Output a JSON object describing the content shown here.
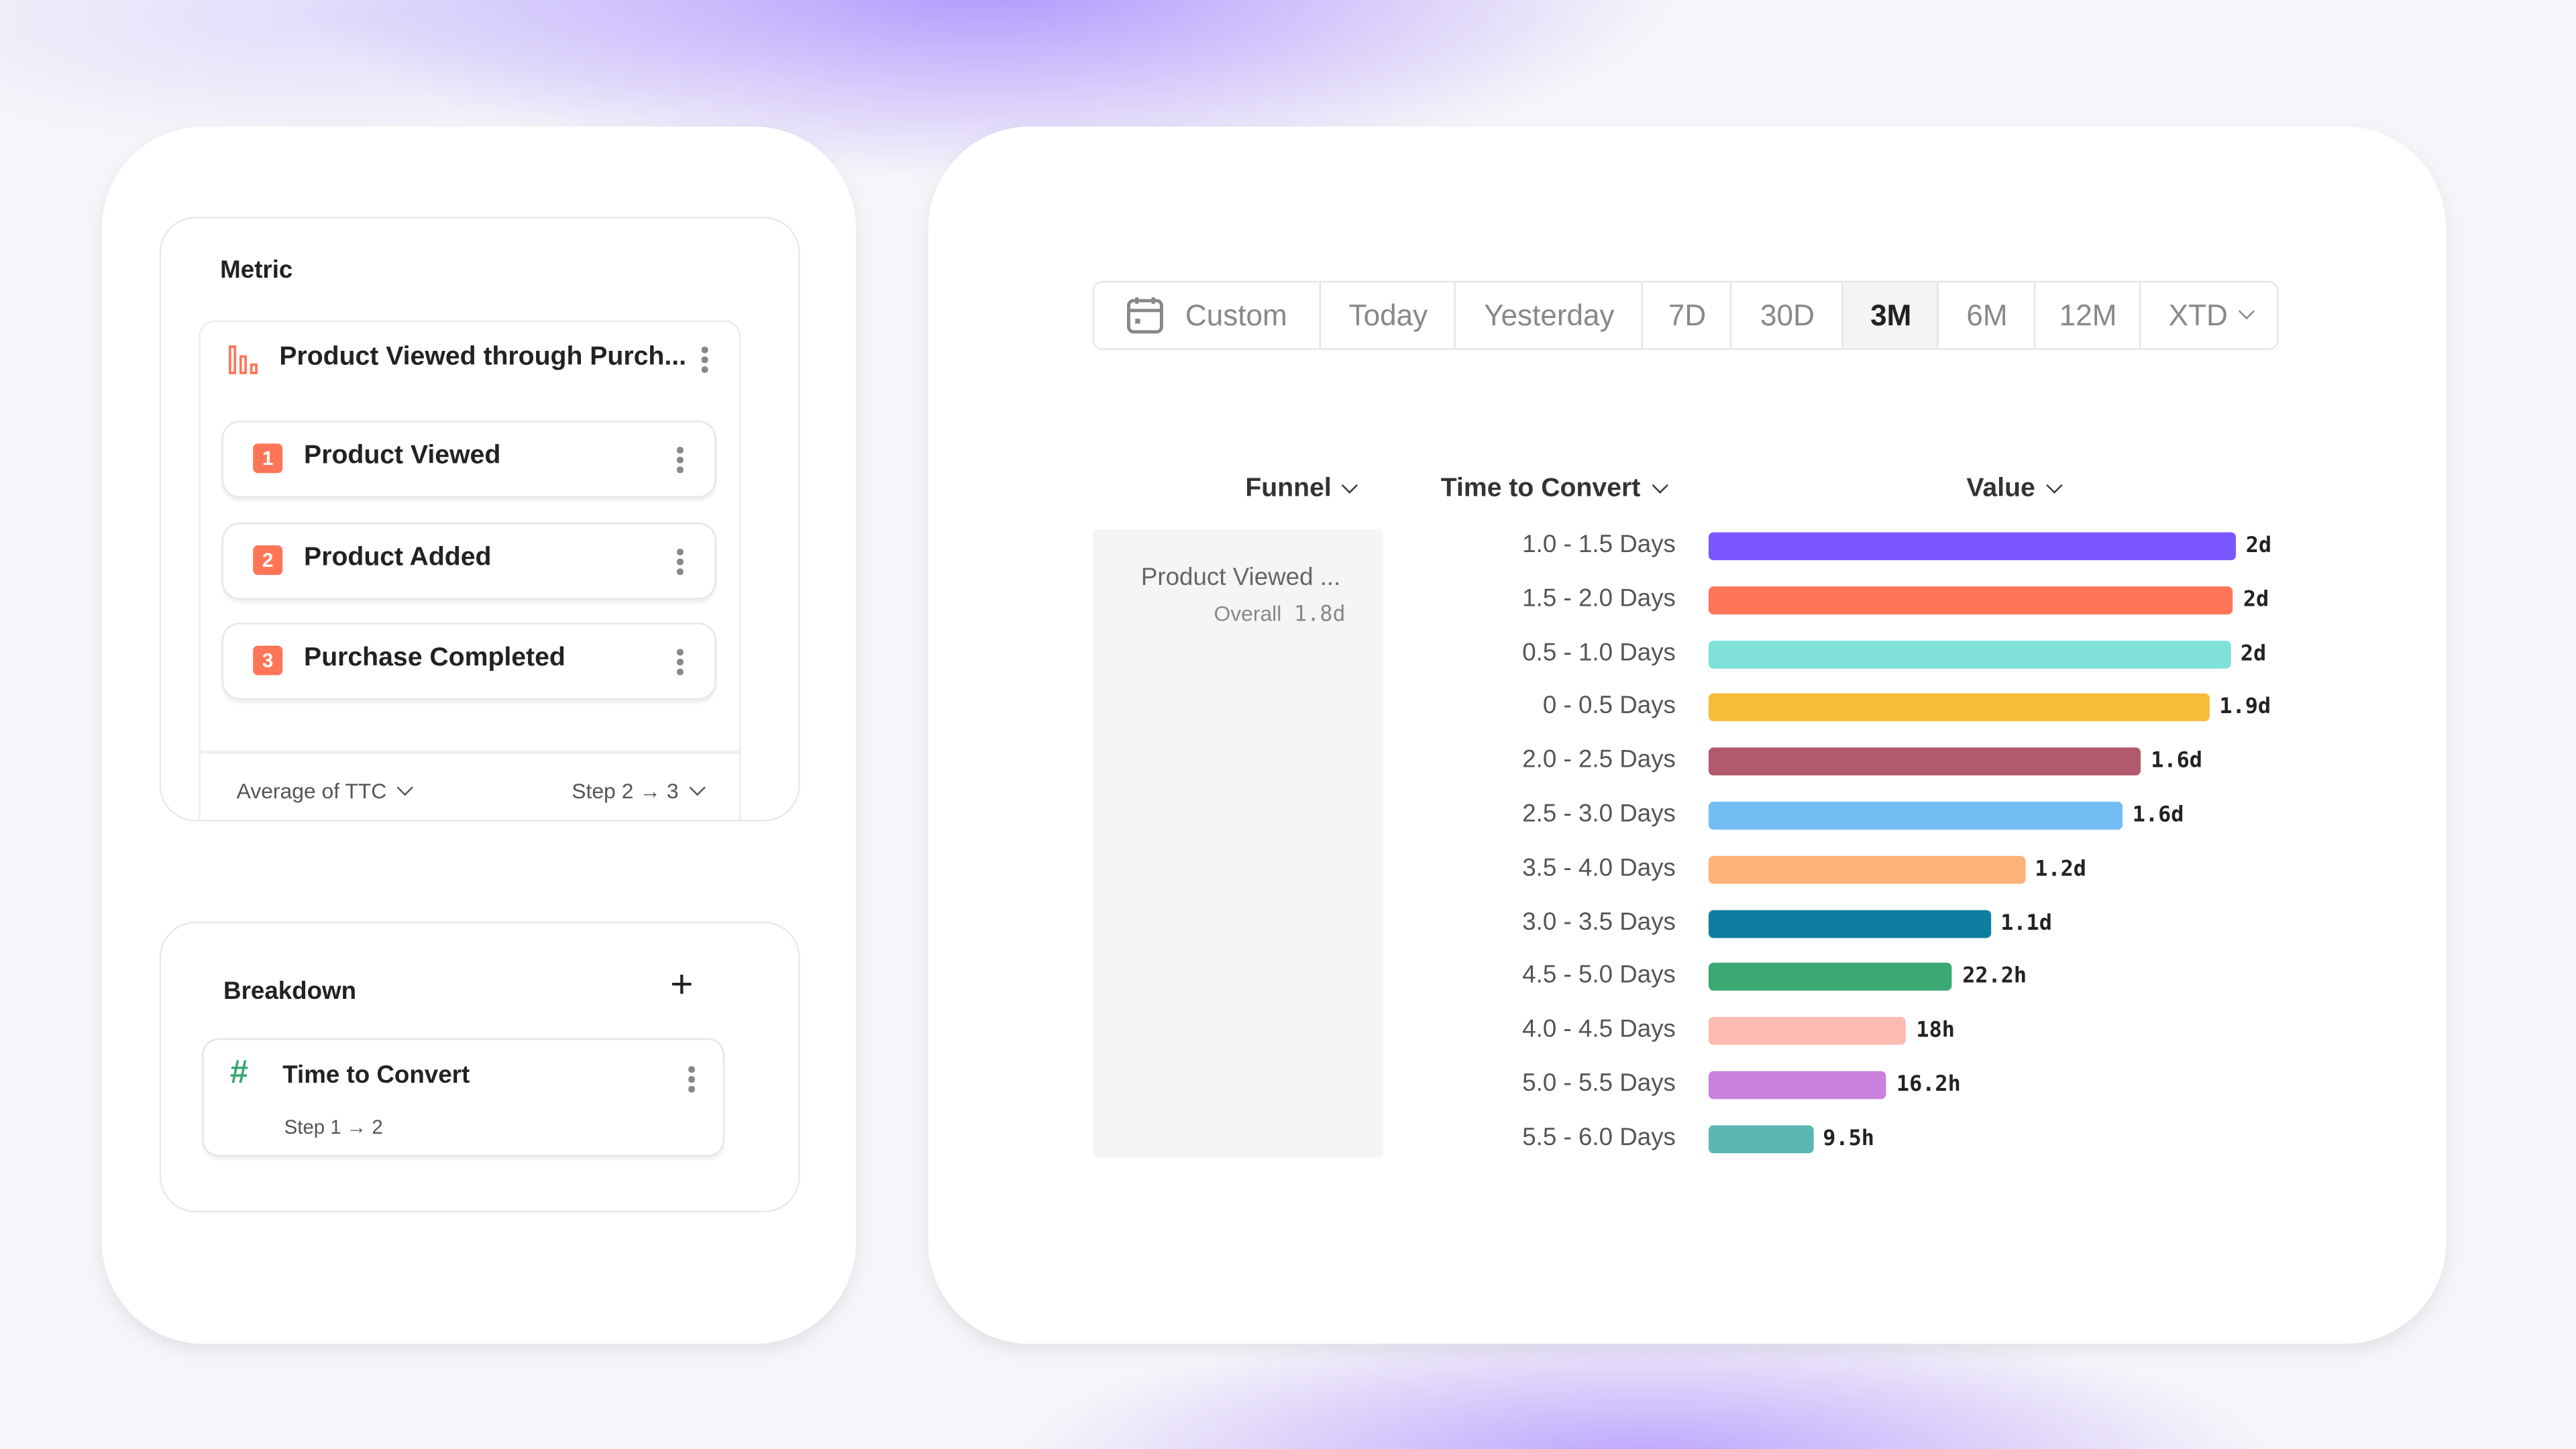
{
  "metric": {
    "title": "Metric",
    "funnel_name": "Product Viewed through Purch...",
    "funnel_icon": "funnel-bars-icon",
    "steps": [
      {
        "number": "1",
        "label": "Product Viewed"
      },
      {
        "number": "2",
        "label": "Product Added"
      },
      {
        "number": "3",
        "label": "Purchase Completed"
      }
    ],
    "aggregation": "Average of TTC",
    "step_range": "Step 2 → 3"
  },
  "breakdown": {
    "title": "Breakdown",
    "add_icon": "plus-icon",
    "item": {
      "icon": "hash-icon",
      "label": "Time to Convert",
      "sub": "Step 1 → 2"
    }
  },
  "date_range": {
    "icon": "calendar-icon",
    "options": [
      "Custom",
      "Today",
      "Yesterday",
      "7D",
      "30D",
      "3M",
      "6M",
      "12M",
      "XTD"
    ],
    "selected": "3M"
  },
  "table": {
    "headers": {
      "funnel": "Funnel",
      "time": "Time to Convert",
      "value": "Value"
    },
    "funnel_cell": {
      "name": "Product Viewed ...",
      "overall_label": "Overall",
      "overall_value": "1.8d"
    }
  },
  "chart_data": {
    "type": "bar",
    "orientation": "horizontal",
    "unit": "days",
    "xlim": [
      0,
      2.0
    ],
    "categories": [
      "1.0 - 1.5 Days",
      "1.5 - 2.0 Days",
      "0.5 - 1.0 Days",
      "0 - 0.5 Days",
      "2.0 - 2.5 Days",
      "2.5 - 3.0 Days",
      "3.5 - 4.0 Days",
      "3.0 - 3.5 Days",
      "4.5 - 5.0 Days",
      "4.0 - 4.5 Days",
      "5.0 - 5.5 Days",
      "5.5 - 6.0 Days"
    ],
    "values": [
      2.0,
      1.99,
      1.98,
      1.9,
      1.64,
      1.57,
      1.2,
      1.07,
      0.925,
      0.75,
      0.675,
      0.396
    ],
    "labels": [
      "2d",
      "2d",
      "2d",
      "1.9d",
      "1.6d",
      "1.6d",
      "1.2d",
      "1.1d",
      "22.2h",
      "18h",
      "16.2h",
      "9.5h"
    ],
    "colors": [
      "#7B57FF",
      "#FF7557",
      "#80E1D9",
      "#F8BC3B",
      "#B2596E",
      "#72BEF4",
      "#FFB27A",
      "#0D7EA0",
      "#3BA974",
      "#FEBBB2",
      "#CA80DC",
      "#5BB7AF"
    ]
  }
}
